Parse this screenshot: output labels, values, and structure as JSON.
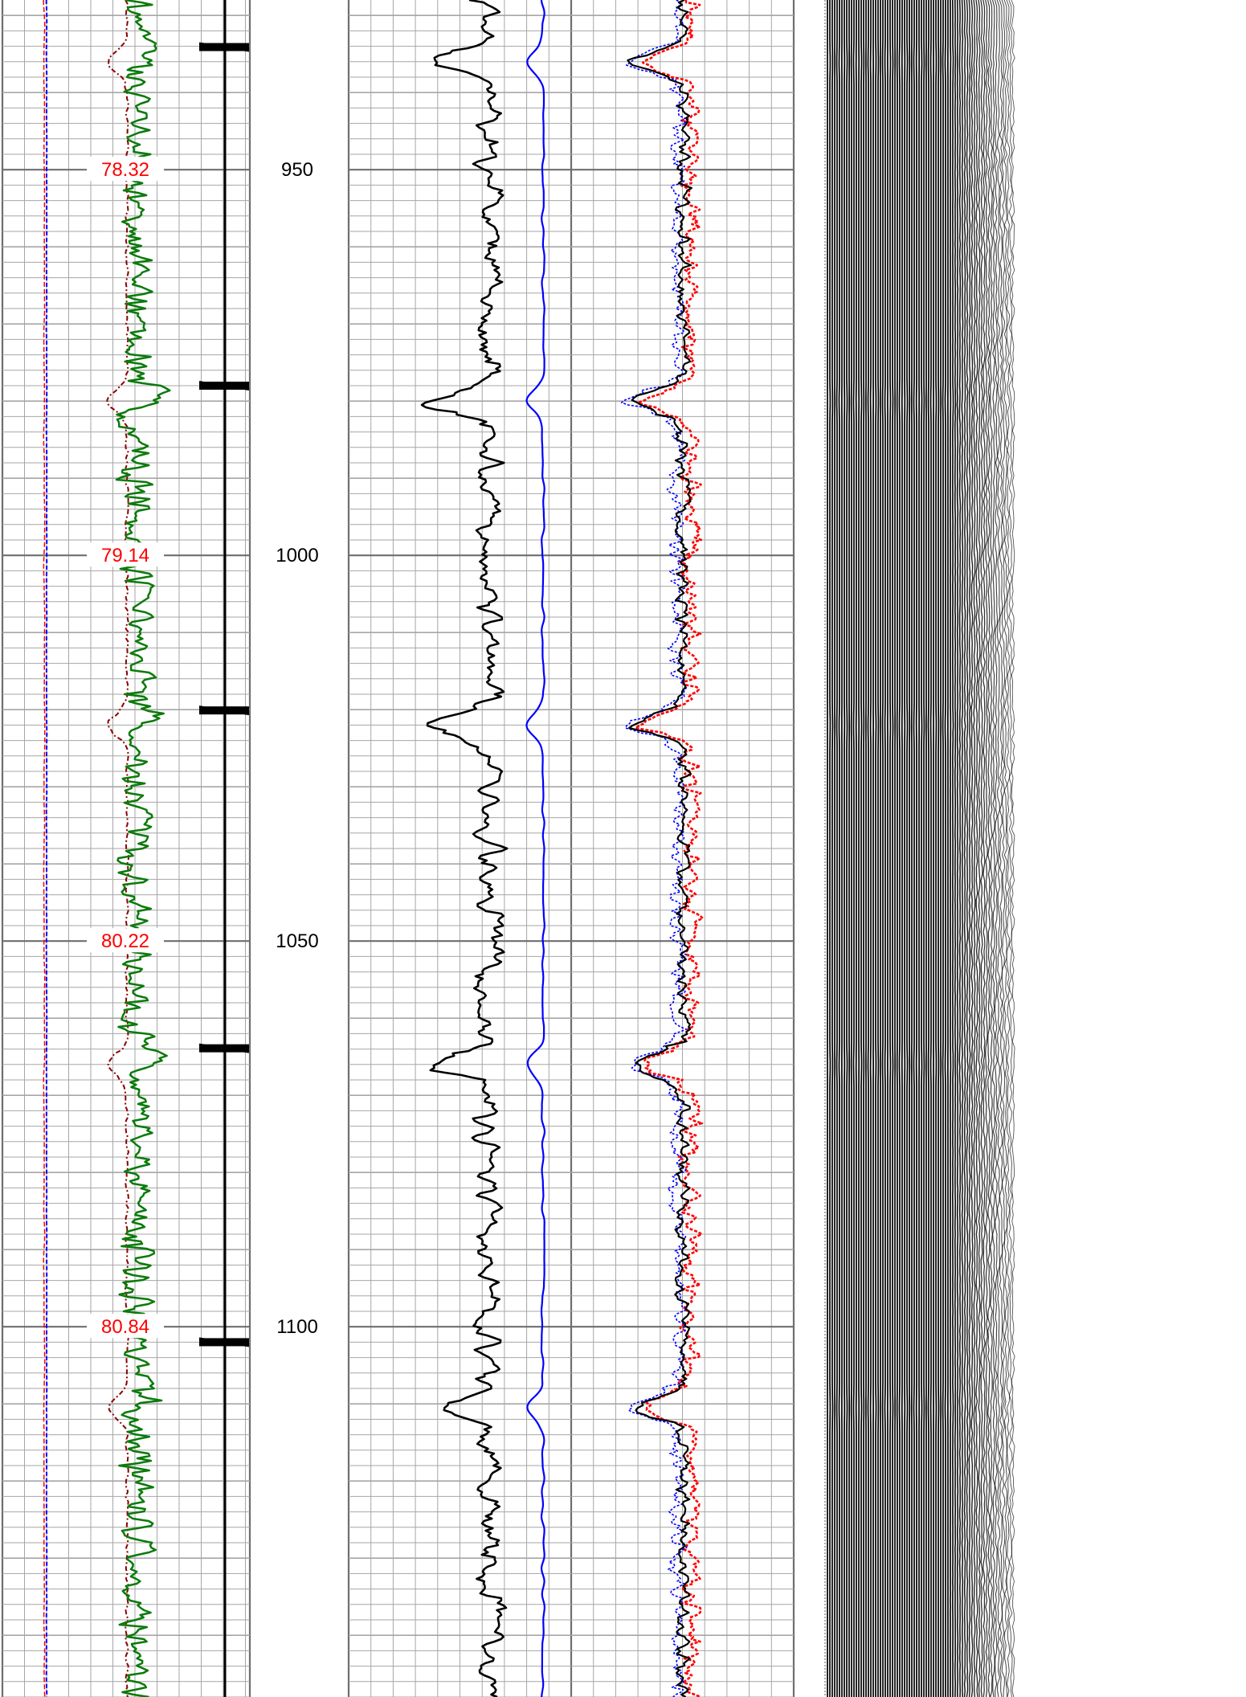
{
  "chart_data": {
    "type": "line",
    "title": "",
    "xlabel": "",
    "ylabel": "",
    "ylim": [
      928,
      1148
    ],
    "grid": true,
    "depth_ticks": [
      950,
      1000,
      1050,
      1100
    ],
    "temperature_labels": [
      {
        "depth": 950,
        "value": "78.32"
      },
      {
        "depth": 1000,
        "value": "79.14"
      },
      {
        "depth": 1050,
        "value": "80.22"
      },
      {
        "depth": 1100,
        "value": "80.84"
      }
    ],
    "collar_depths": [
      934.1,
      978.0,
      1020.1,
      1063.9,
      1102.0
    ],
    "formation_bands": [
      {
        "depth": 936.0,
        "strength": 1.0
      },
      {
        "depth": 980.0,
        "strength": 1.0
      },
      {
        "depth": 1022.2,
        "strength": 0.7
      },
      {
        "depth": 1066.0,
        "strength": 1.0
      },
      {
        "depth": 1110.5,
        "strength": 0.5
      }
    ],
    "gr_anomalies": [
      936.0,
      980.0,
      1022.0,
      1066.0,
      1110.5
    ],
    "colors": {
      "grid_major": "#6e6e6e",
      "grid_minor": "#a6a6a6",
      "temperature": "#ff0000",
      "gamma": "#0a7a0a",
      "casing_fluid": "#8b0000",
      "reference": "#0000ff",
      "amplitude": "#000000",
      "travel_time": "#0000ff",
      "vdl_background": "#ffffff",
      "bond_background": "#66e3ee",
      "bond_band": "#f6d98a"
    }
  }
}
